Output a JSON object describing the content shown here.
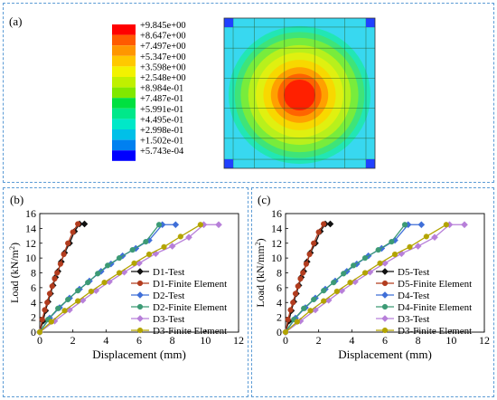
{
  "panel_a": {
    "label": "(a)",
    "legend_values": [
      "+9.845e+00",
      "+8.647e+00",
      "+7.497e+00",
      "+5.347e+00",
      "+3.598e+00",
      "+2.548e+00",
      "+8.984e-01",
      "+7.487e-01",
      "+5.991e-01",
      "+4.495e-01",
      "+2.998e-01",
      "+1.502e-01",
      "+5.743e-04"
    ],
    "legend_colors": [
      "#ff0000",
      "#ff5a00",
      "#ff9600",
      "#ffc800",
      "#f2f200",
      "#c0f000",
      "#80e800",
      "#00e040",
      "#00e88a",
      "#00e8c8",
      "#00c0e8",
      "#0080f0",
      "#0000ff"
    ],
    "contour_colors": [
      "#38d8f0",
      "#22e6b4",
      "#3fe478",
      "#78ec3c",
      "#b8f01c",
      "#e0f010",
      "#f8d800",
      "#ffa000",
      "#ff6400",
      "#ff2000"
    ],
    "corner_color": "#2040ff"
  },
  "chart_data": [
    {
      "type": "line",
      "panel_label": "(b)",
      "xlabel": "Displacement (mm)",
      "ylabel": "Load (kN/m",
      "ylabel_sup": "2",
      "ylabel_end": ")",
      "xlim": [
        0,
        12
      ],
      "ylim": [
        0,
        16
      ],
      "xticks": [
        0,
        2,
        4,
        6,
        8,
        10,
        12
      ],
      "yticks": [
        0,
        2,
        4,
        6,
        8,
        10,
        12,
        14,
        16
      ],
      "legend_position": "bottom-right",
      "series": [
        {
          "name": "D1-Test",
          "color": "#111111",
          "marker": "diamond",
          "x": [
            0,
            0.2,
            0.35,
            0.5,
            0.65,
            0.8,
            0.95,
            1.1,
            1.3,
            1.5,
            1.8,
            2.1,
            2.4,
            2.7
          ],
          "y": [
            0,
            1.5,
            2.9,
            4.1,
            5.2,
            6.3,
            7.4,
            8.2,
            9.5,
            10.7,
            12.0,
            13.6,
            14.6,
            14.6
          ]
        },
        {
          "name": "D1-Finite Element",
          "color": "#b23c1e",
          "marker": "circle",
          "x": [
            0,
            0.15,
            0.3,
            0.45,
            0.6,
            0.75,
            0.9,
            1.05,
            1.25,
            1.45,
            1.7,
            2.0,
            2.3
          ],
          "y": [
            0,
            1.7,
            3.0,
            4.0,
            5.2,
            6.2,
            7.2,
            8.0,
            9.2,
            10.5,
            12.0,
            13.5,
            14.6
          ]
        },
        {
          "name": "D2-Test",
          "color": "#3f6fd8",
          "marker": "diamond",
          "x": [
            0,
            0.6,
            1.2,
            1.8,
            2.4,
            3.0,
            3.7,
            4.3,
            5.0,
            5.8,
            6.6,
            7.4,
            8.2
          ],
          "y": [
            0,
            1.9,
            3.3,
            4.6,
            5.8,
            6.9,
            8.2,
            9.2,
            10.3,
            11.3,
            12.4,
            14.5,
            14.5
          ]
        },
        {
          "name": "D2-Finite Element",
          "color": "#3c9a75",
          "marker": "circle",
          "x": [
            0,
            0.5,
            1.1,
            1.7,
            2.3,
            2.9,
            3.5,
            4.1,
            4.8,
            5.6,
            6.4,
            7.2
          ],
          "y": [
            0,
            1.7,
            3.2,
            4.4,
            5.6,
            6.7,
            7.9,
            9.0,
            10.0,
            11.1,
            12.2,
            14.5
          ]
        },
        {
          "name": "D3-Test",
          "color": "#b77fd9",
          "marker": "diamond",
          "x": [
            0,
            0.9,
            1.8,
            2.6,
            3.4,
            4.2,
            5.1,
            6.0,
            7.0,
            8.0,
            9.0,
            9.9,
            10.8
          ],
          "y": [
            0,
            1.5,
            3.0,
            4.3,
            5.6,
            6.8,
            8.1,
            9.3,
            10.6,
            11.6,
            12.8,
            14.5,
            14.5
          ]
        },
        {
          "name": "D3-Finite Element",
          "color": "#b3a400",
          "marker": "circle",
          "x": [
            0,
            0.7,
            1.5,
            2.3,
            3.1,
            3.9,
            4.8,
            5.7,
            6.6,
            7.5,
            8.5,
            9.7
          ],
          "y": [
            0,
            1.4,
            2.9,
            4.2,
            5.5,
            6.7,
            8.0,
            9.3,
            10.5,
            11.5,
            12.9,
            14.5
          ]
        }
      ]
    },
    {
      "type": "line",
      "panel_label": "(c)",
      "xlabel": "Displacement (mm)",
      "ylabel": "Load (kN/mm",
      "ylabel_sup": "2",
      "ylabel_end": ")",
      "xlim": [
        0,
        12
      ],
      "ylim": [
        0,
        16
      ],
      "xticks": [
        0,
        2,
        4,
        6,
        8,
        10,
        12
      ],
      "yticks": [
        0,
        2,
        4,
        6,
        8,
        10,
        12,
        14,
        16
      ],
      "legend_position": "bottom-right",
      "series": [
        {
          "name": "D5-Test",
          "color": "#111111",
          "marker": "diamond",
          "x": [
            0,
            0.2,
            0.35,
            0.5,
            0.65,
            0.8,
            0.95,
            1.1,
            1.3,
            1.5,
            1.8,
            2.1,
            2.4,
            2.7
          ],
          "y": [
            0,
            1.5,
            2.9,
            4.1,
            5.2,
            6.3,
            7.4,
            8.2,
            9.5,
            10.7,
            12.0,
            13.6,
            14.6,
            14.6
          ]
        },
        {
          "name": "D5-Finite Element",
          "color": "#b23c1e",
          "marker": "circle",
          "x": [
            0,
            0.15,
            0.3,
            0.45,
            0.6,
            0.75,
            0.9,
            1.05,
            1.25,
            1.45,
            1.7,
            2.0,
            2.3
          ],
          "y": [
            0,
            1.7,
            3.0,
            4.0,
            5.2,
            6.2,
            7.2,
            8.0,
            9.2,
            10.5,
            12.0,
            13.5,
            14.6
          ]
        },
        {
          "name": "D4-Test",
          "color": "#3f6fd8",
          "marker": "diamond",
          "x": [
            0,
            0.6,
            1.2,
            1.8,
            2.4,
            3.0,
            3.7,
            4.3,
            5.0,
            5.8,
            6.6,
            7.4,
            8.2
          ],
          "y": [
            0,
            1.9,
            3.3,
            4.6,
            5.8,
            6.9,
            8.2,
            9.2,
            10.3,
            11.3,
            12.4,
            14.5,
            14.5
          ]
        },
        {
          "name": "D4-Finite Element",
          "color": "#3c9a75",
          "marker": "circle",
          "x": [
            0,
            0.5,
            1.1,
            1.7,
            2.3,
            2.9,
            3.5,
            4.1,
            4.8,
            5.6,
            6.4,
            7.2
          ],
          "y": [
            0,
            1.7,
            3.2,
            4.4,
            5.6,
            6.7,
            7.9,
            9.0,
            10.0,
            11.1,
            12.2,
            14.5
          ]
        },
        {
          "name": "D3-Test",
          "color": "#b77fd9",
          "marker": "diamond",
          "x": [
            0,
            0.9,
            1.8,
            2.6,
            3.4,
            4.2,
            5.1,
            6.0,
            7.0,
            8.0,
            9.0,
            9.9,
            10.8
          ],
          "y": [
            0,
            1.5,
            3.0,
            4.3,
            5.6,
            6.8,
            8.1,
            9.3,
            10.6,
            11.6,
            12.8,
            14.5,
            14.5
          ]
        },
        {
          "name": "D3-Finite Element",
          "color": "#b3a400",
          "marker": "circle",
          "x": [
            0,
            0.7,
            1.5,
            2.3,
            3.1,
            3.9,
            4.8,
            5.7,
            6.6,
            7.5,
            8.5,
            9.7
          ],
          "y": [
            0,
            1.4,
            2.9,
            4.2,
            5.5,
            6.7,
            8.0,
            9.3,
            10.5,
            11.5,
            12.9,
            14.5
          ]
        }
      ]
    }
  ]
}
